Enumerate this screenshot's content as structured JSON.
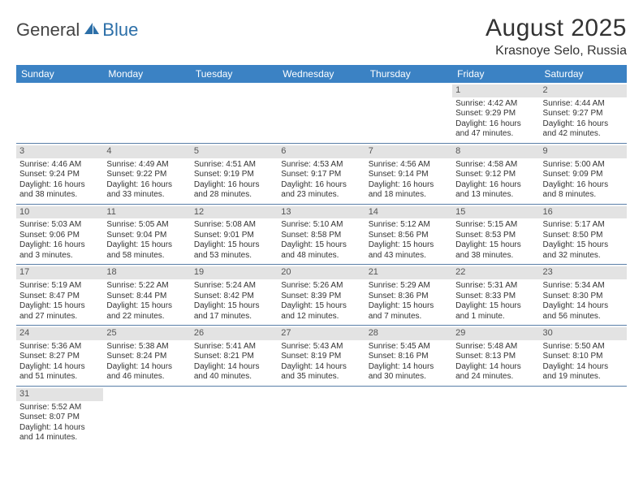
{
  "brand": {
    "part1": "General",
    "part2": "Blue"
  },
  "title": "August 2025",
  "location": "Krasnoye Selo, Russia",
  "colors": {
    "header_bg": "#3b82c4",
    "header_text": "#ffffff",
    "daynum_bg": "#e3e3e3",
    "cell_border": "#5a7fa8",
    "brand_blue": "#2c6fa8",
    "text": "#333333"
  },
  "weekdays": [
    "Sunday",
    "Monday",
    "Tuesday",
    "Wednesday",
    "Thursday",
    "Friday",
    "Saturday"
  ],
  "weeks": [
    [
      null,
      null,
      null,
      null,
      null,
      {
        "d": "1",
        "sr": "Sunrise: 4:42 AM",
        "ss": "Sunset: 9:29 PM",
        "dl1": "Daylight: 16 hours",
        "dl2": "and 47 minutes."
      },
      {
        "d": "2",
        "sr": "Sunrise: 4:44 AM",
        "ss": "Sunset: 9:27 PM",
        "dl1": "Daylight: 16 hours",
        "dl2": "and 42 minutes."
      }
    ],
    [
      {
        "d": "3",
        "sr": "Sunrise: 4:46 AM",
        "ss": "Sunset: 9:24 PM",
        "dl1": "Daylight: 16 hours",
        "dl2": "and 38 minutes."
      },
      {
        "d": "4",
        "sr": "Sunrise: 4:49 AM",
        "ss": "Sunset: 9:22 PM",
        "dl1": "Daylight: 16 hours",
        "dl2": "and 33 minutes."
      },
      {
        "d": "5",
        "sr": "Sunrise: 4:51 AM",
        "ss": "Sunset: 9:19 PM",
        "dl1": "Daylight: 16 hours",
        "dl2": "and 28 minutes."
      },
      {
        "d": "6",
        "sr": "Sunrise: 4:53 AM",
        "ss": "Sunset: 9:17 PM",
        "dl1": "Daylight: 16 hours",
        "dl2": "and 23 minutes."
      },
      {
        "d": "7",
        "sr": "Sunrise: 4:56 AM",
        "ss": "Sunset: 9:14 PM",
        "dl1": "Daylight: 16 hours",
        "dl2": "and 18 minutes."
      },
      {
        "d": "8",
        "sr": "Sunrise: 4:58 AM",
        "ss": "Sunset: 9:12 PM",
        "dl1": "Daylight: 16 hours",
        "dl2": "and 13 minutes."
      },
      {
        "d": "9",
        "sr": "Sunrise: 5:00 AM",
        "ss": "Sunset: 9:09 PM",
        "dl1": "Daylight: 16 hours",
        "dl2": "and 8 minutes."
      }
    ],
    [
      {
        "d": "10",
        "sr": "Sunrise: 5:03 AM",
        "ss": "Sunset: 9:06 PM",
        "dl1": "Daylight: 16 hours",
        "dl2": "and 3 minutes."
      },
      {
        "d": "11",
        "sr": "Sunrise: 5:05 AM",
        "ss": "Sunset: 9:04 PM",
        "dl1": "Daylight: 15 hours",
        "dl2": "and 58 minutes."
      },
      {
        "d": "12",
        "sr": "Sunrise: 5:08 AM",
        "ss": "Sunset: 9:01 PM",
        "dl1": "Daylight: 15 hours",
        "dl2": "and 53 minutes."
      },
      {
        "d": "13",
        "sr": "Sunrise: 5:10 AM",
        "ss": "Sunset: 8:58 PM",
        "dl1": "Daylight: 15 hours",
        "dl2": "and 48 minutes."
      },
      {
        "d": "14",
        "sr": "Sunrise: 5:12 AM",
        "ss": "Sunset: 8:56 PM",
        "dl1": "Daylight: 15 hours",
        "dl2": "and 43 minutes."
      },
      {
        "d": "15",
        "sr": "Sunrise: 5:15 AM",
        "ss": "Sunset: 8:53 PM",
        "dl1": "Daylight: 15 hours",
        "dl2": "and 38 minutes."
      },
      {
        "d": "16",
        "sr": "Sunrise: 5:17 AM",
        "ss": "Sunset: 8:50 PM",
        "dl1": "Daylight: 15 hours",
        "dl2": "and 32 minutes."
      }
    ],
    [
      {
        "d": "17",
        "sr": "Sunrise: 5:19 AM",
        "ss": "Sunset: 8:47 PM",
        "dl1": "Daylight: 15 hours",
        "dl2": "and 27 minutes."
      },
      {
        "d": "18",
        "sr": "Sunrise: 5:22 AM",
        "ss": "Sunset: 8:44 PM",
        "dl1": "Daylight: 15 hours",
        "dl2": "and 22 minutes."
      },
      {
        "d": "19",
        "sr": "Sunrise: 5:24 AM",
        "ss": "Sunset: 8:42 PM",
        "dl1": "Daylight: 15 hours",
        "dl2": "and 17 minutes."
      },
      {
        "d": "20",
        "sr": "Sunrise: 5:26 AM",
        "ss": "Sunset: 8:39 PM",
        "dl1": "Daylight: 15 hours",
        "dl2": "and 12 minutes."
      },
      {
        "d": "21",
        "sr": "Sunrise: 5:29 AM",
        "ss": "Sunset: 8:36 PM",
        "dl1": "Daylight: 15 hours",
        "dl2": "and 7 minutes."
      },
      {
        "d": "22",
        "sr": "Sunrise: 5:31 AM",
        "ss": "Sunset: 8:33 PM",
        "dl1": "Daylight: 15 hours",
        "dl2": "and 1 minute."
      },
      {
        "d": "23",
        "sr": "Sunrise: 5:34 AM",
        "ss": "Sunset: 8:30 PM",
        "dl1": "Daylight: 14 hours",
        "dl2": "and 56 minutes."
      }
    ],
    [
      {
        "d": "24",
        "sr": "Sunrise: 5:36 AM",
        "ss": "Sunset: 8:27 PM",
        "dl1": "Daylight: 14 hours",
        "dl2": "and 51 minutes."
      },
      {
        "d": "25",
        "sr": "Sunrise: 5:38 AM",
        "ss": "Sunset: 8:24 PM",
        "dl1": "Daylight: 14 hours",
        "dl2": "and 46 minutes."
      },
      {
        "d": "26",
        "sr": "Sunrise: 5:41 AM",
        "ss": "Sunset: 8:21 PM",
        "dl1": "Daylight: 14 hours",
        "dl2": "and 40 minutes."
      },
      {
        "d": "27",
        "sr": "Sunrise: 5:43 AM",
        "ss": "Sunset: 8:19 PM",
        "dl1": "Daylight: 14 hours",
        "dl2": "and 35 minutes."
      },
      {
        "d": "28",
        "sr": "Sunrise: 5:45 AM",
        "ss": "Sunset: 8:16 PM",
        "dl1": "Daylight: 14 hours",
        "dl2": "and 30 minutes."
      },
      {
        "d": "29",
        "sr": "Sunrise: 5:48 AM",
        "ss": "Sunset: 8:13 PM",
        "dl1": "Daylight: 14 hours",
        "dl2": "and 24 minutes."
      },
      {
        "d": "30",
        "sr": "Sunrise: 5:50 AM",
        "ss": "Sunset: 8:10 PM",
        "dl1": "Daylight: 14 hours",
        "dl2": "and 19 minutes."
      }
    ],
    [
      {
        "d": "31",
        "sr": "Sunrise: 5:52 AM",
        "ss": "Sunset: 8:07 PM",
        "dl1": "Daylight: 14 hours",
        "dl2": "and 14 minutes."
      },
      null,
      null,
      null,
      null,
      null,
      null
    ]
  ]
}
